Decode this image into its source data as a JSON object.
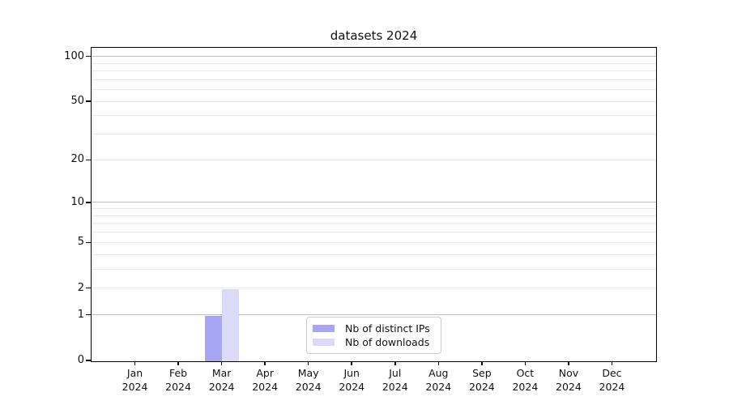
{
  "figure": {
    "title": "datasets 2024"
  },
  "chart_data": {
    "type": "bar",
    "title": "datasets 2024",
    "x": {
      "categories": [
        "Jan",
        "Feb",
        "Mar",
        "Apr",
        "May",
        "Jun",
        "Jul",
        "Aug",
        "Sep",
        "Oct",
        "Nov",
        "Dec"
      ],
      "year_label": "2024"
    },
    "series": [
      {
        "name": "Nb of distinct IPs",
        "color": "#a6a6f4",
        "values": [
          0,
          0,
          1,
          0,
          0,
          0,
          0,
          0,
          0,
          0,
          0,
          0
        ]
      },
      {
        "name": "Nb of downloads",
        "color": "#dbdbf8",
        "values": [
          0,
          0,
          2,
          0,
          0,
          0,
          0,
          0,
          0,
          0,
          0,
          0
        ]
      }
    ],
    "y_axis": {
      "scale": "log1p",
      "tick_labels": [
        "0",
        "1",
        "2",
        "5",
        "10",
        "20",
        "50",
        "100"
      ],
      "tick_values": [
        0,
        1,
        2,
        5,
        10,
        20,
        50,
        100
      ],
      "major_gridlines": [
        1,
        10,
        100
      ],
      "minor_gridlines": [
        2,
        3,
        4,
        5,
        6,
        7,
        8,
        9,
        20,
        30,
        40,
        50,
        60,
        70,
        80,
        90
      ],
      "ylim": [
        0,
        117
      ]
    },
    "legend": {
      "position": "lower center"
    },
    "grid": true,
    "colors": {
      "major_grid": "#bdbdbd",
      "minor_grid": "#e9e9e9",
      "spine": "#000000",
      "background": "#ffffff"
    }
  }
}
